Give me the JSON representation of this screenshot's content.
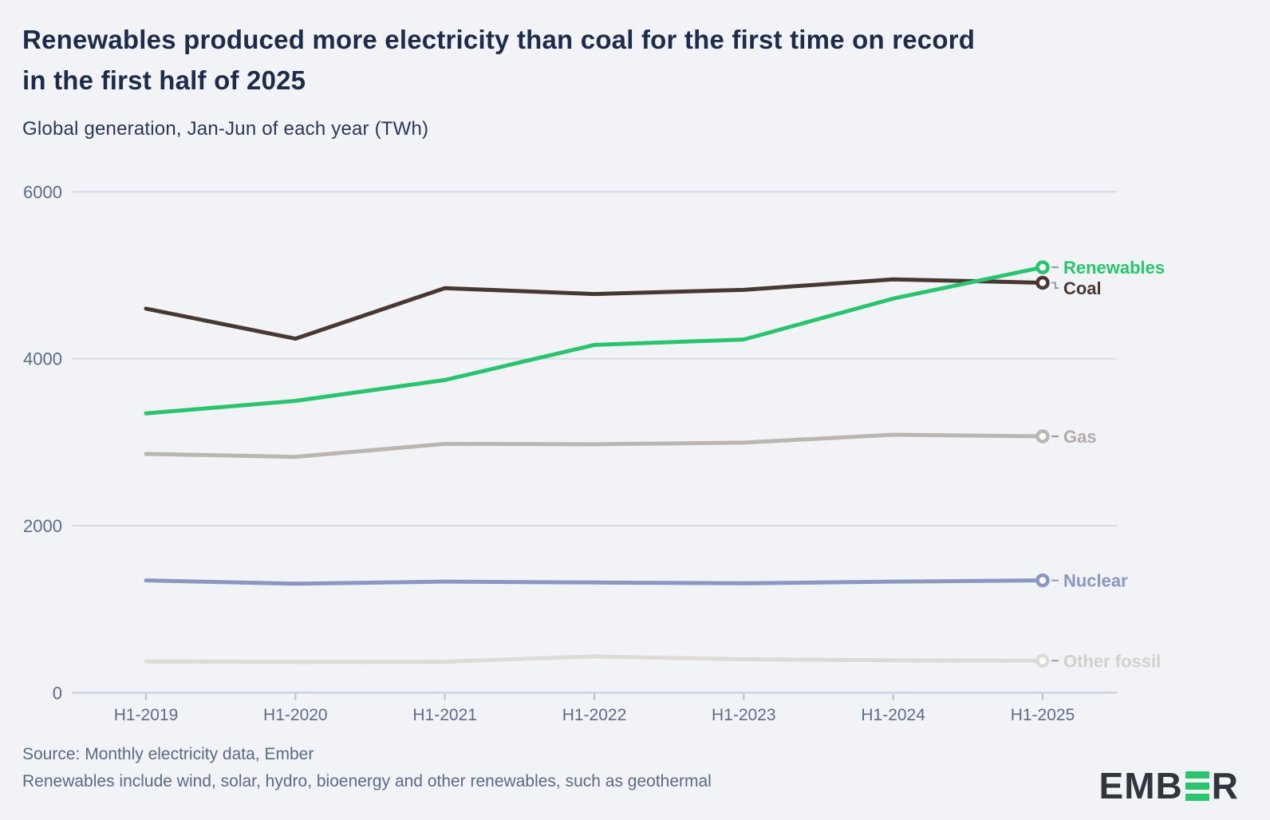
{
  "header": {
    "title_line1": "Renewables produced more electricity than coal for the first time on record",
    "title_line2": "in the first half of 2025",
    "subtitle": "Global generation, Jan-Jun of each year (TWh)"
  },
  "chart_data": {
    "type": "line",
    "title": "Renewables produced more electricity than coal for the first time on record in the first half of 2025",
    "subtitle": "Global generation, Jan-Jun of each year (TWh)",
    "xlabel": "",
    "ylabel": "",
    "categories": [
      "H1-2019",
      "H1-2020",
      "H1-2021",
      "H1-2022",
      "H1-2023",
      "H1-2024",
      "H1-2025"
    ],
    "series": [
      {
        "name": "Other fossil",
        "color": "#dedad6",
        "label_color": "#d4cfcb",
        "values": [
          375,
          368,
          372,
          435,
          400,
          388,
          383
        ]
      },
      {
        "name": "Nuclear",
        "color": "#8a97c1",
        "label_color": "#8a97c1",
        "values": [
          1345,
          1305,
          1330,
          1320,
          1310,
          1330,
          1345
        ]
      },
      {
        "name": "Gas",
        "color": "#bcb6b3",
        "label_color": "#b2aba8",
        "values": [
          2860,
          2825,
          2980,
          2975,
          2995,
          3090,
          3070
        ]
      },
      {
        "name": "Coal",
        "color": "#473831",
        "label_color": "#473831",
        "values": [
          4600,
          4240,
          4845,
          4775,
          4825,
          4950,
          4910
        ]
      },
      {
        "name": "Renewables",
        "color": "#2bc46e",
        "label_color": "#2bc46e",
        "values": [
          3345,
          3495,
          3745,
          4165,
          4230,
          4720,
          5095
        ]
      }
    ],
    "ylim": [
      0,
      6000
    ],
    "yticks": [
      0,
      2000,
      4000,
      6000
    ],
    "grid": true,
    "legend_position": "labels-at-line-ends"
  },
  "theme": {
    "background": "#f1f3f7",
    "gridline": "#d8dce6",
    "axis_line": "#c5cbd8",
    "tick_mark": "#b6bdcb",
    "label_connector": "#97999f",
    "marker_fill": "#ffffff"
  },
  "footer": {
    "source_line": "Source: Monthly electricity data, Ember",
    "note_line": "Renewables include wind, solar, hydro, bioenergy and other renewables, such as geothermal"
  },
  "logo": {
    "text_before": "EMB",
    "text_after": "R",
    "bars_icon": "three-green-bars",
    "dark": "#31363d",
    "green": "#2bc46e"
  }
}
